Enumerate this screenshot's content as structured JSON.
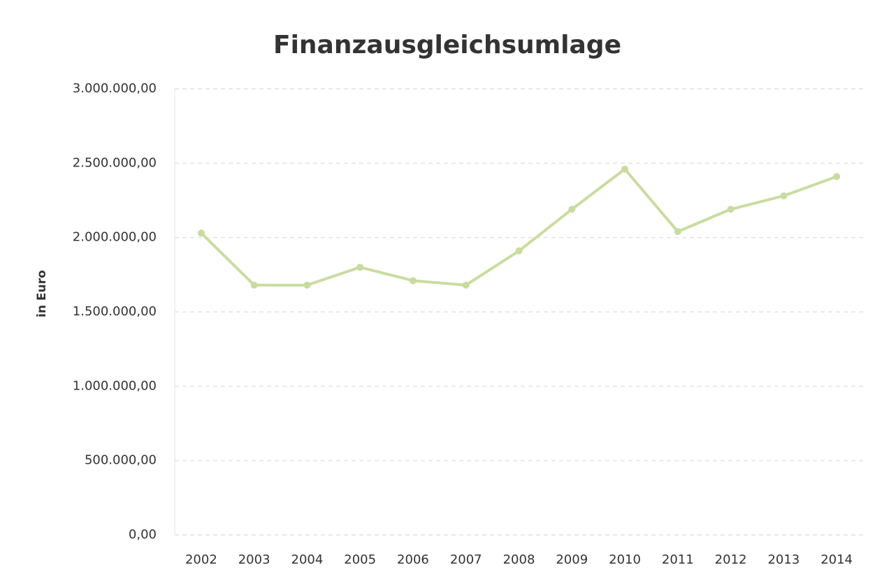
{
  "chart_data": {
    "type": "line",
    "title": "Finanzausgleichsumlage",
    "y_label": "in Euro",
    "categories": [
      "2002",
      "2003",
      "2004",
      "2005",
      "2006",
      "2007",
      "2008",
      "2009",
      "2010",
      "2011",
      "2012",
      "2013",
      "2014"
    ],
    "series": [
      {
        "name": "Finanzausgleichsumlage",
        "color": "#c9dca0",
        "values": [
          2030000,
          1680000,
          1680000,
          1800000,
          1710000,
          1680000,
          1910000,
          2190000,
          2460000,
          2040000,
          2190000,
          2280000,
          2410000
        ]
      }
    ],
    "ylim": [
      0,
      3000000
    ],
    "yticks": [
      {
        "value": 0,
        "label": "0,00"
      },
      {
        "value": 500000,
        "label": "500.000,00"
      },
      {
        "value": 1000000,
        "label": "1.000.000,00"
      },
      {
        "value": 1500000,
        "label": "1.500.000,00"
      },
      {
        "value": 2000000,
        "label": "2.000.000,00"
      },
      {
        "value": 2500000,
        "label": "2.500.000,00"
      },
      {
        "value": 3000000,
        "label": "3.000.000,00"
      }
    ],
    "grid": true
  }
}
